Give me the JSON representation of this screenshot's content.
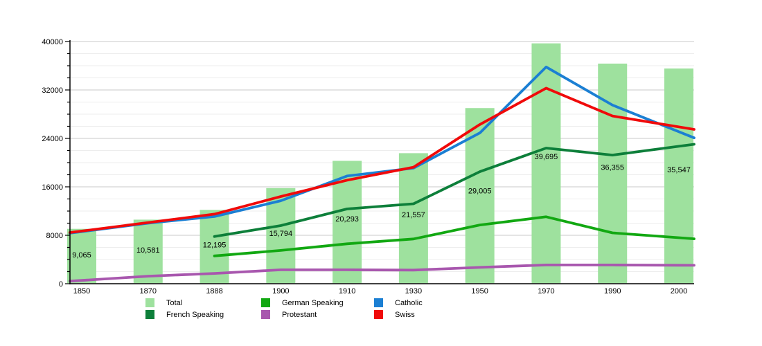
{
  "chart_data": {
    "type": "bar+line",
    "title": "",
    "categories": [
      "1850",
      "1870",
      "1888",
      "1900",
      "1910",
      "1930",
      "1950",
      "1970",
      "1990",
      "2000"
    ],
    "y_axis": {
      "min": 0,
      "max": 40000,
      "major_step": 8000,
      "minor_step": 2000,
      "tick_labels": [
        "0",
        "8000",
        "16000",
        "24000",
        "32000",
        "40000"
      ]
    },
    "bars": {
      "name": "Total",
      "color": "#9ee19e",
      "values": [
        9065,
        10581,
        12195,
        15794,
        20293,
        21557,
        29005,
        39695,
        36355,
        35547
      ],
      "labels": [
        "9,065",
        "10,581",
        "12,195",
        "15,794",
        "20,293",
        "21,557",
        "29,005",
        "39,695",
        "36,355",
        "35,547"
      ]
    },
    "series": [
      {
        "key": "french-speaking",
        "name": "French Speaking",
        "color": "#0d7f3a",
        "values": [
          null,
          null,
          7800,
          9600,
          12350,
          13200,
          18500,
          22400,
          21250,
          22700
        ]
      },
      {
        "key": "german-speaking",
        "name": "German Speaking",
        "color": "#12a812",
        "values": [
          null,
          null,
          4600,
          5500,
          6600,
          7400,
          9700,
          11050,
          8400,
          7600
        ]
      },
      {
        "key": "protestant",
        "name": "Protestant",
        "color": "#a857ae",
        "values": [
          550,
          1250,
          1700,
          2300,
          2300,
          2250,
          2700,
          3100,
          3100,
          3050
        ]
      },
      {
        "key": "catholic",
        "name": "Catholic",
        "color": "#1b7fd3",
        "values": [
          8600,
          10000,
          11100,
          13700,
          17800,
          19100,
          24900,
          35800,
          29500,
          25100
        ]
      },
      {
        "key": "swiss",
        "name": "Swiss",
        "color": "#f00a0a",
        "values": [
          8700,
          10100,
          11500,
          14400,
          17100,
          19250,
          26300,
          32300,
          27700,
          25900
        ]
      }
    ],
    "legend": [
      {
        "label": "Total",
        "color": "#9ee19e"
      },
      {
        "label": "French Speaking",
        "color": "#0d7f3a"
      },
      {
        "label": "German Speaking",
        "color": "#12a812"
      },
      {
        "label": "Protestant",
        "color": "#a857ae"
      },
      {
        "label": "Catholic",
        "color": "#1b7fd3"
      },
      {
        "label": "Swiss",
        "color": "#f00a0a"
      }
    ],
    "grid": {
      "minor_color": "#ededed",
      "major_color": "#c9c9c9",
      "axis_color": "#000000"
    }
  }
}
